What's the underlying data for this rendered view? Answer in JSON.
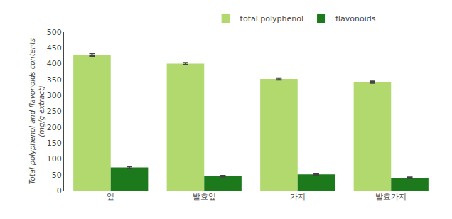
{
  "chart_data": {
    "type": "bar",
    "categories": [
      "잎",
      "발효잎",
      "가지",
      "발효가지"
    ],
    "series": [
      {
        "name": "total polyphenol",
        "color": "#b2d96e",
        "values": [
          428,
          400,
          352,
          342
        ],
        "errors": [
          4,
          3,
          3,
          3
        ]
      },
      {
        "name": "flavonoids",
        "color": "#1c7a1c",
        "values": [
          73,
          45,
          51,
          40
        ],
        "errors": [
          3,
          2,
          2,
          2
        ]
      }
    ],
    "ylabel": [
      "Total polyphenol and flavonoids contents",
      "(mg/g extract)"
    ],
    "ylim": [
      0,
      500
    ],
    "yticks": [
      0,
      50,
      100,
      150,
      200,
      250,
      300,
      350,
      400,
      450,
      500
    ],
    "grid": false,
    "legend": "top"
  }
}
